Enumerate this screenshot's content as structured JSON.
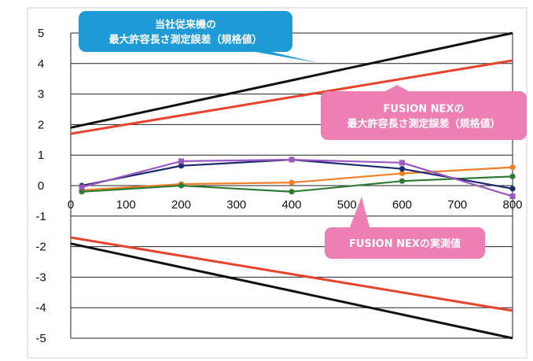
{
  "chart_data": {
    "type": "line",
    "title": "",
    "xlabel": "",
    "ylabel": "",
    "xlim": [
      0,
      800
    ],
    "ylim": [
      -5,
      5
    ],
    "x_ticks": [
      0,
      100,
      200,
      300,
      400,
      500,
      600,
      700,
      800
    ],
    "y_ticks": [
      5,
      4,
      3,
      2,
      1,
      0,
      -1,
      -2,
      -3,
      -4,
      -5
    ],
    "grid": "horizontal",
    "series": [
      {
        "color": "#111111",
        "marker": "none",
        "x": [
          0,
          800
        ],
        "y": [
          1.9,
          5.0
        ]
      },
      {
        "color": "#111111",
        "marker": "none",
        "x": [
          0,
          800
        ],
        "y": [
          -1.9,
          -5.0
        ]
      },
      {
        "color": "#e8432a",
        "marker": "none",
        "x": [
          0,
          800
        ],
        "y": [
          1.7,
          4.1
        ]
      },
      {
        "color": "#e8432a",
        "marker": "none",
        "x": [
          0,
          800
        ],
        "y": [
          -1.7,
          -4.1
        ]
      },
      {
        "color": "#f07f28",
        "marker": "circle",
        "x": [
          20,
          200,
          400,
          600,
          800
        ],
        "y": [
          -0.15,
          0.05,
          0.1,
          0.4,
          0.6
        ]
      },
      {
        "color": "#2f7a35",
        "marker": "circle",
        "x": [
          20,
          200,
          400,
          600,
          800
        ],
        "y": [
          -0.2,
          0.0,
          -0.2,
          0.15,
          0.3
        ]
      },
      {
        "color": "#1d2b70",
        "marker": "circle",
        "x": [
          20,
          200,
          400,
          600,
          800
        ],
        "y": [
          0.0,
          0.65,
          0.85,
          0.55,
          -0.1
        ]
      },
      {
        "color": "#9a58c2",
        "marker": "square",
        "x": [
          20,
          200,
          400,
          600,
          800
        ],
        "y": [
          -0.05,
          0.8,
          0.85,
          0.75,
          -0.35
        ]
      }
    ],
    "annotations": [
      {
        "id": "competitor",
        "lines": [
          "当社従来機の",
          "最大許容長さ測定誤差（規格値）"
        ],
        "color": "#1e9ad6"
      },
      {
        "id": "fusion_spec",
        "lines": [
          "FUSION NEXの",
          "最大許容長さ測定誤差（規格値）"
        ],
        "color": "#ee7fb5"
      },
      {
        "id": "fusion_measured",
        "lines": [
          "FUSION NEXの実測値"
        ],
        "color": "#ee7fb5"
      }
    ]
  }
}
